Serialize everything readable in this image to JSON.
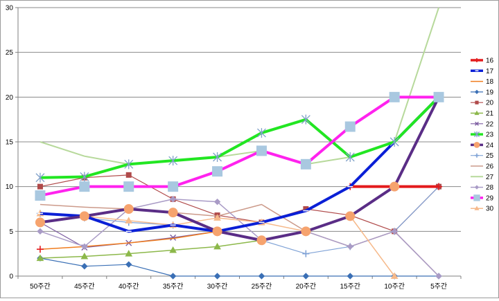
{
  "chart_data": {
    "type": "line",
    "title": "",
    "xlabel": "",
    "ylabel": "",
    "categories": [
      "50주간",
      "45주간",
      "40주간",
      "35주간",
      "30주간",
      "25주간",
      "20주간",
      "15주간",
      "10주간",
      "5주간"
    ],
    "ylim": [
      0,
      30
    ],
    "yticks": [
      0,
      5,
      10,
      15,
      20,
      25,
      30
    ],
    "grid": "horizontal",
    "legend_position": "right",
    "series": [
      {
        "name": "16",
        "color": "#e31a1c",
        "width": 4,
        "marker": "plus",
        "values": [
          3,
          null,
          null,
          null,
          null,
          null,
          null,
          10,
          10,
          10
        ]
      },
      {
        "name": "17",
        "color": "#0a1fd6",
        "width": 4,
        "marker": "dash",
        "values": [
          7,
          6.7,
          5,
          5.7,
          5,
          6,
          7.3,
          10,
          15,
          20
        ]
      },
      {
        "name": "18",
        "color": "#f07c1e",
        "width": 1.5,
        "marker": "none",
        "values": [
          3,
          3.3,
          3.7,
          4.2,
          5,
          6,
          7.3,
          10,
          15,
          20
        ]
      },
      {
        "name": "19",
        "color": "#3a6fb5",
        "width": 1.2,
        "marker": "diamond",
        "values": [
          2,
          1.1,
          1.3,
          0,
          0,
          0,
          0,
          0,
          0,
          0
        ]
      },
      {
        "name": "20",
        "color": "#b04a4a",
        "width": 1.2,
        "marker": "square",
        "values": [
          10,
          11,
          11.3,
          8.6,
          6.8,
          6,
          7.5,
          6.8,
          5,
          10
        ]
      },
      {
        "name": "21",
        "color": "#8cb84a",
        "width": 1.5,
        "marker": "triangle",
        "values": [
          2,
          2.2,
          2.5,
          2.9,
          3.3,
          4,
          5,
          6.7,
          10,
          20
        ]
      },
      {
        "name": "22",
        "color": "#7a5aa0",
        "width": 1.2,
        "marker": "x",
        "values": [
          6,
          3.2,
          3.7,
          4.3,
          5,
          4,
          5,
          6.7,
          10,
          20
        ]
      },
      {
        "name": "23",
        "color": "#22e622",
        "width": 4,
        "marker": "star",
        "values": [
          11,
          11.1,
          12.5,
          12.9,
          13.3,
          16,
          17.5,
          13.3,
          15,
          20
        ]
      },
      {
        "name": "24",
        "color": "#5a2d86",
        "width": 4,
        "marker": "circle",
        "values": [
          6,
          6.7,
          7.5,
          7.1,
          5,
          4,
          5,
          6.7,
          10,
          20
        ]
      },
      {
        "name": "25",
        "color": "#7fa2d6",
        "width": 1.2,
        "marker": "plus",
        "values": [
          7,
          6.5,
          6,
          5.7,
          5,
          4,
          2.5,
          3.3,
          5,
          10
        ]
      },
      {
        "name": "26",
        "color": "#cc9a8a",
        "width": 1.5,
        "marker": "none",
        "values": [
          8,
          7.7,
          7.5,
          7.1,
          6.7,
          8,
          5,
          3.3,
          5,
          0
        ]
      },
      {
        "name": "27",
        "color": "#b7d99b",
        "width": 2,
        "marker": "none",
        "values": [
          15,
          13.4,
          12.5,
          12.9,
          13.3,
          14,
          12.5,
          13.3,
          15,
          30
        ]
      },
      {
        "name": "28",
        "color": "#a99bc6",
        "width": 1.5,
        "marker": "diamond",
        "values": [
          5,
          3.3,
          7.5,
          8.6,
          8.3,
          4,
          5,
          3.3,
          5,
          0
        ]
      },
      {
        "name": "29",
        "color": "#ff22ee",
        "width": 4,
        "marker": "bigsquare",
        "values": [
          9,
          10,
          10,
          10,
          11.7,
          14,
          12.5,
          16.7,
          20,
          20
        ]
      },
      {
        "name": "30",
        "color": "#f6b98a",
        "width": 1.5,
        "marker": "triangle",
        "values": [
          7,
          6.7,
          6.2,
          5.7,
          6.5,
          6,
          5,
          6.7,
          0,
          null
        ]
      }
    ]
  }
}
